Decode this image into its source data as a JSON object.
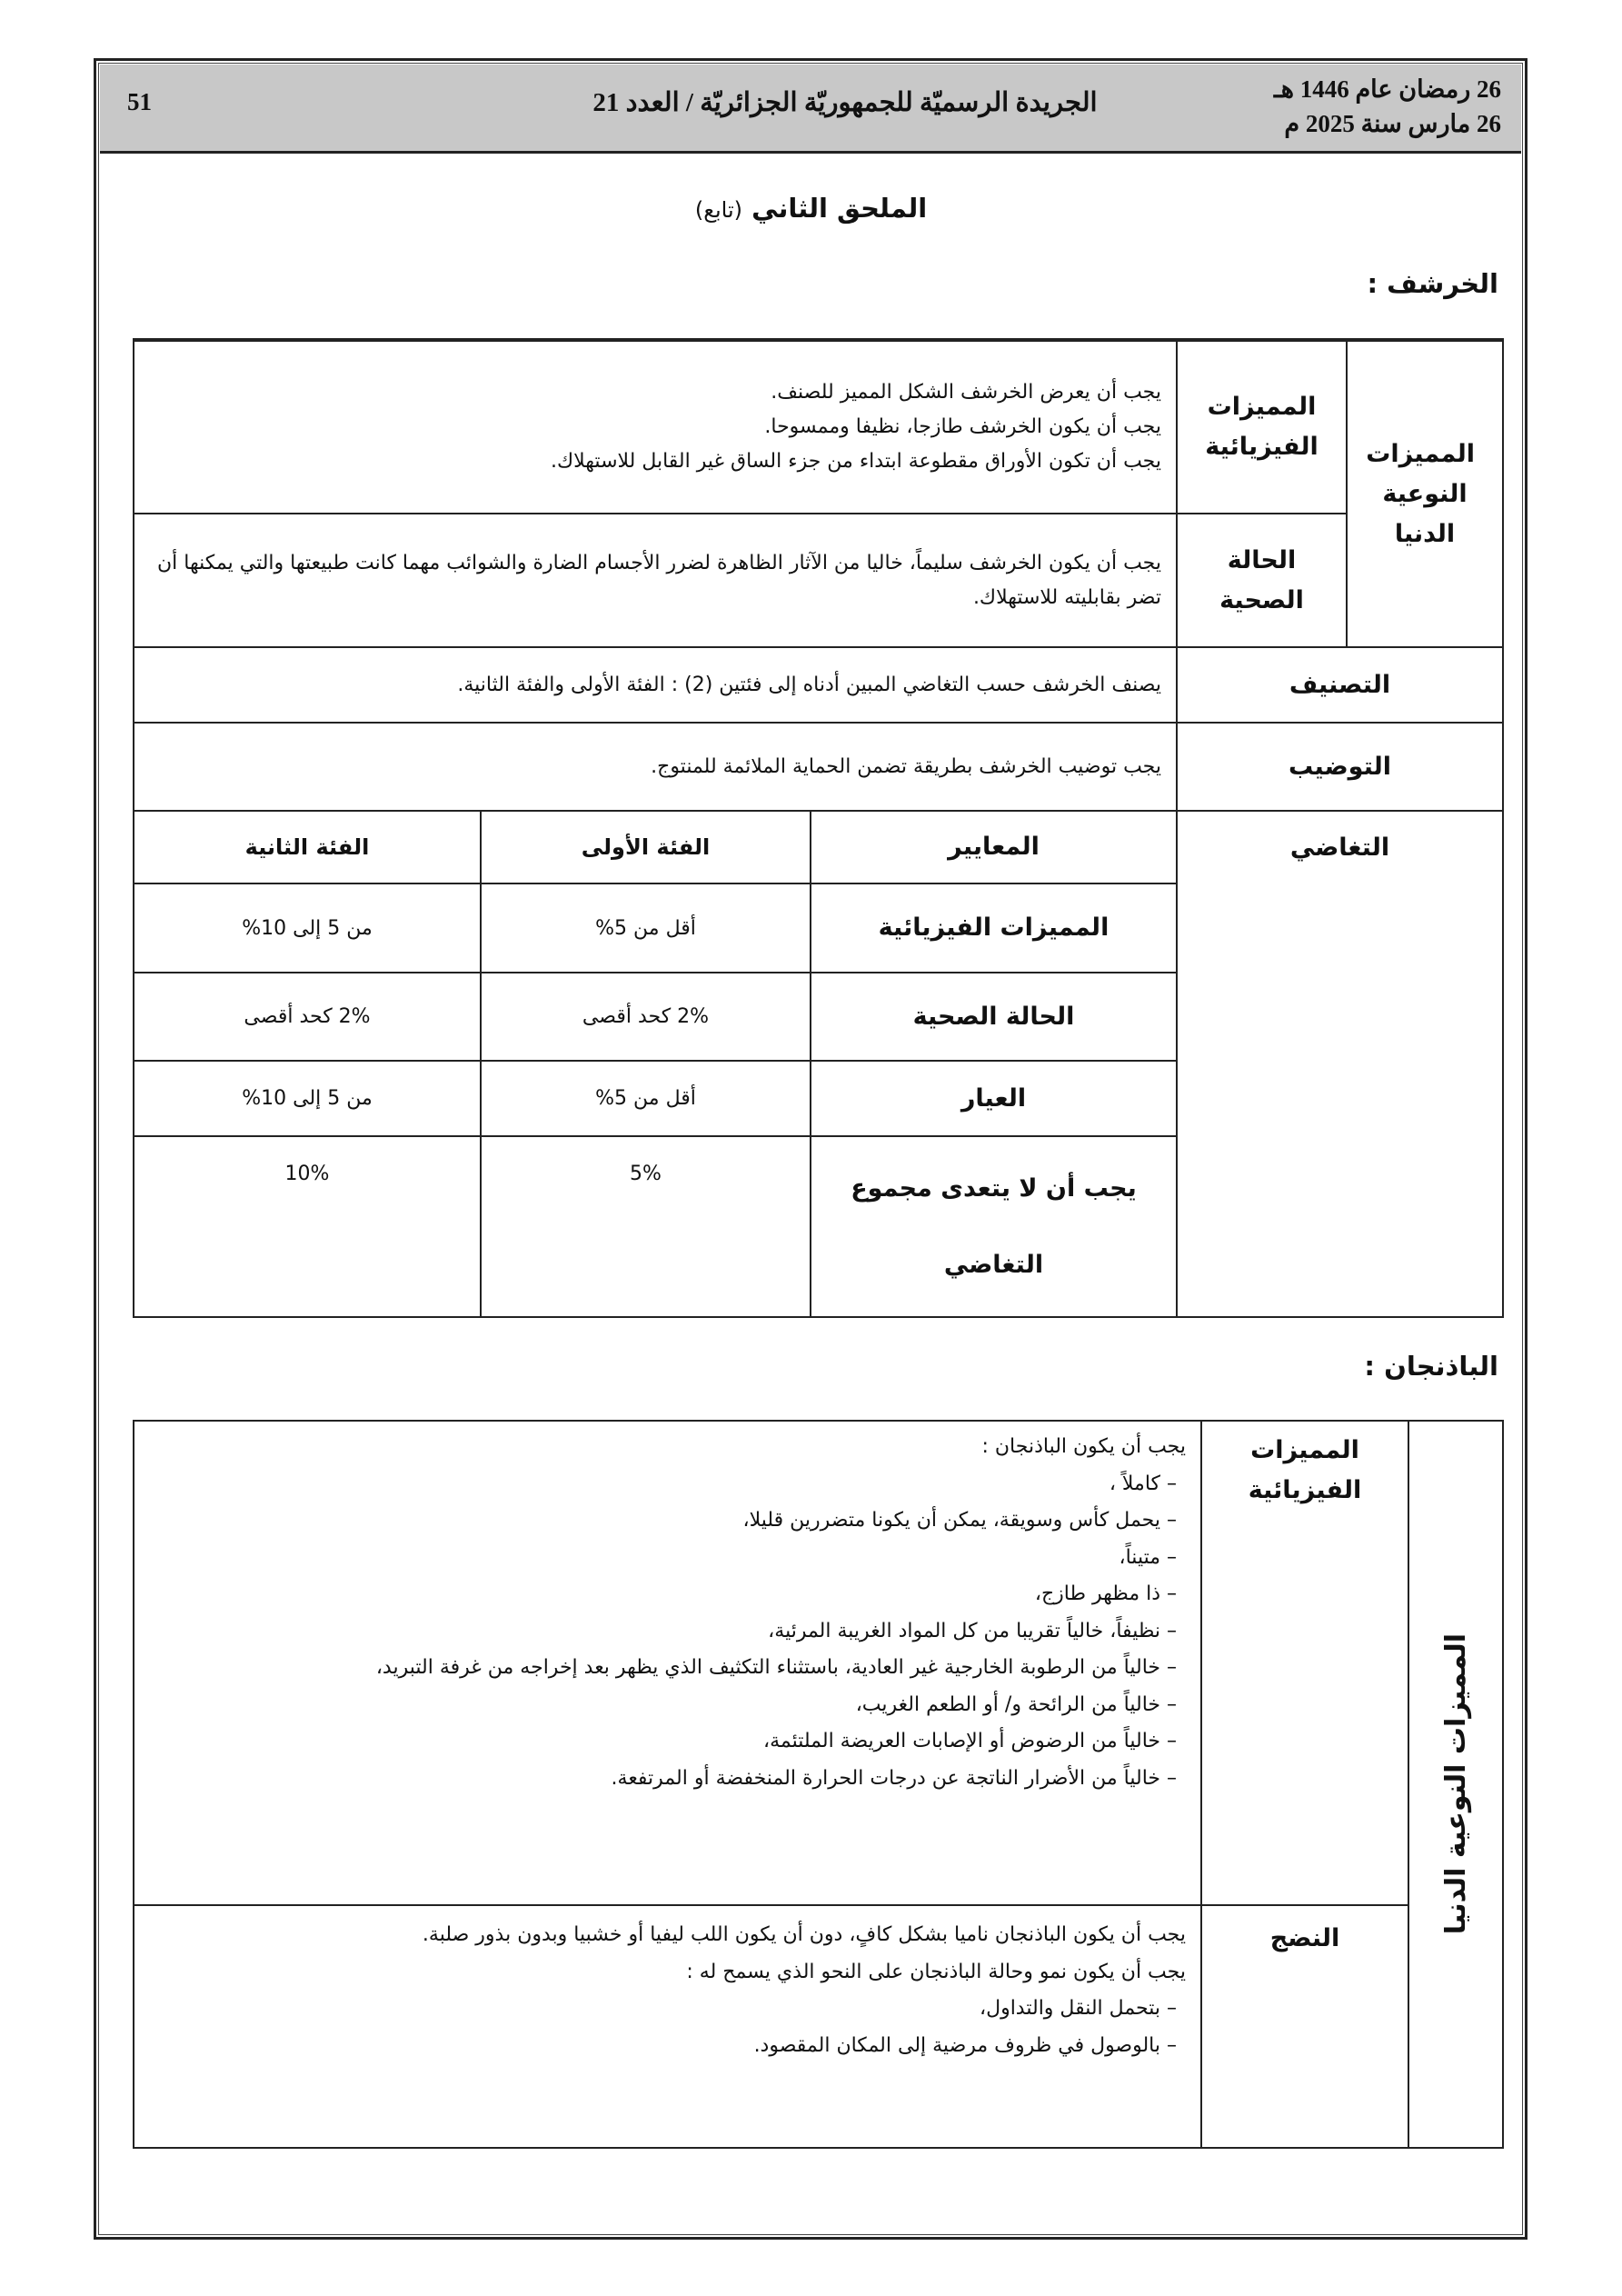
{
  "header": {
    "date_hijri": "26 رمضان عام 1446 هـ",
    "date_gregorian": "26 مارس سنة 2025 م",
    "title": "الجريدة الرسميّة للجمهوريّة الجزائريّة / العدد 21",
    "page_number": "51"
  },
  "annex": {
    "title": "الملحق الثاني",
    "subtitle": "(تابع)"
  },
  "artichoke": {
    "heading": "الخرشف :",
    "group_label": "المميزات النوعية الدنيا",
    "physical": {
      "label": "المميزات الفيزيائية",
      "lines": [
        "يجب أن يعرض الخرشف الشكل المميز للصنف.",
        "يجب أن يكون الخرشف طازجا، نظيفا وممسوحا.",
        "يجب أن تكون الأوراق مقطوعة ابتداء من جزء الساق غير القابل للاستهلاك."
      ]
    },
    "health": {
      "label": "الحالة الصحية",
      "text": "يجب أن يكون الخرشف سليماً، خاليا من الآثار الظاهرة لضرر الأجسام الضارة والشوائب مهما كانت طبيعتها والتي يمكنها أن تضر بقابليته للاستهلاك."
    },
    "classification": {
      "label": "التصنيف",
      "text": "يصنف الخرشف حسب التغاضي المبين أدناه إلى فئتين (2) : الفئة الأولى والفئة الثانية."
    },
    "packaging": {
      "label": "التوضيب",
      "text": "يجب توضيب الخرشف بطريقة تضمن الحماية الملائمة للمنتوج."
    },
    "tolerance": {
      "label": "التغاضي",
      "columns": [
        "المعايير",
        "الفئة الأولى",
        "الفئة الثانية"
      ],
      "rows": [
        [
          "المميزات الفيزيائية",
          "أقل من 5%",
          "من 5 إلى 10%"
        ],
        [
          "الحالة الصحية",
          "2% كحد أقصى",
          "2% كحد أقصى"
        ],
        [
          "العيار",
          "أقل من 5%",
          "من 5 إلى 10%"
        ],
        [
          "يجب أن لا يتعدى مجموع التغاضي",
          "5%",
          "10%"
        ]
      ]
    }
  },
  "eggplant": {
    "heading": "الباذنجان :",
    "group_label": "المميزات النوعية الدنيا",
    "physical": {
      "label": "المميزات الفيزيائية",
      "lines": [
        "يجب أن يكون الباذنجان :",
        "– كاملاً ،",
        "– يحمل كأس وسويقة، يمكن أن يكونا متضررين قليلا،",
        "– متيناً،",
        "– ذا مظهر طازج،",
        "– نظيفاً، خالياً تقريبا من كل المواد الغريبة المرئية،",
        "– خالياً من الرطوبة الخارجية غير العادية، باستثناء التكثيف الذي يظهر بعد إخراجه من غرفة التبريد،",
        "– خالياً من الرائحة و/ أو الطعم الغريب،",
        "– خالياً من الرضوض أو الإصابات العريضة الملتئمة،",
        "– خالياً من الأضرار الناتجة عن درجات الحرارة المنخفضة أو المرتفعة."
      ]
    },
    "ripeness": {
      "label": "النضج",
      "lines": [
        "يجب أن يكون الباذنجان ناميا بشكل كافٍ، دون أن يكون اللب ليفيا أو خشبيا وبدون بذور صلبة.",
        "يجب أن يكون نمو وحالة الباذنجان على النحو الذي يسمح له :",
        "– بتحمل النقل والتداول،",
        "– بالوصول في ظروف مرضية إلى المكان المقصود."
      ]
    }
  }
}
